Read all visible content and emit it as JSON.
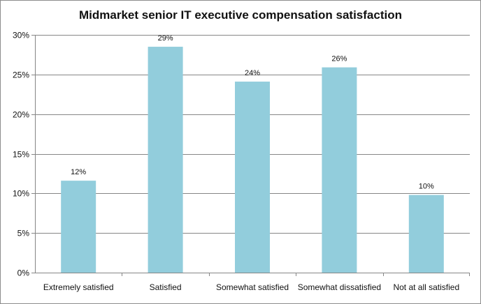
{
  "chart_data": {
    "type": "bar",
    "title": "Midmarket senior IT executive compensation satisfaction",
    "categories": [
      "Extremely satisfied",
      "Satisfied",
      "Somewhat satisfied",
      "Somewhat dissatisfied",
      "Not at all satisfied"
    ],
    "values": [
      11.6,
      28.5,
      24.1,
      25.9,
      9.8
    ],
    "data_labels": [
      "12%",
      "29%",
      "24%",
      "26%",
      "10%"
    ],
    "ylim": [
      0,
      30
    ],
    "yticks": [
      0,
      5,
      10,
      15,
      20,
      25,
      30
    ],
    "ytick_labels": [
      "0%",
      "5%",
      "10%",
      "15%",
      "20%",
      "25%",
      "30%"
    ],
    "xlabel": "",
    "ylabel": "",
    "grid": true,
    "legend": "none",
    "colors": {
      "bar": "#92CDDC",
      "grid": "#868686",
      "axis": "#868686"
    }
  }
}
